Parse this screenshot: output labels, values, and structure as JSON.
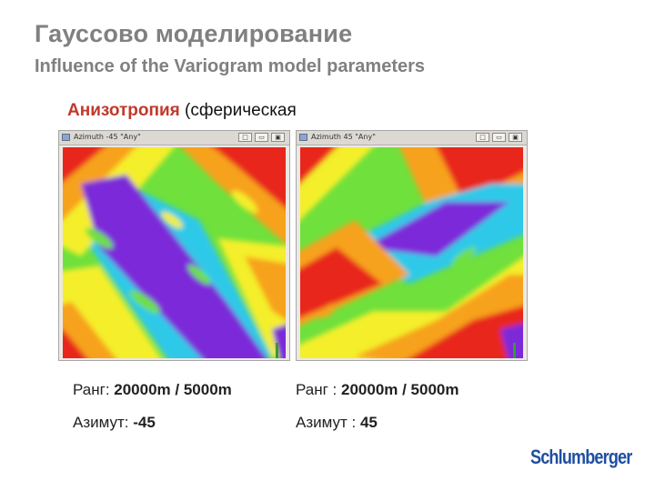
{
  "header": {
    "title": "Гауссово моделирование",
    "subtitle": "Influence of the Variogram model parameters"
  },
  "section": {
    "highlight": "Анизотропия",
    "rest": " (сферическая"
  },
  "windows": [
    {
      "title": "Azimuth -45 \"Any\"",
      "buttons": [
        "□",
        "▭",
        "▣"
      ],
      "range_label": "Ранг: ",
      "range_value": "20000m / 5000m",
      "azimuth_label": "Азимут: ",
      "azimuth_value": "-45"
    },
    {
      "title": "Azimuth 45 \"Any\"",
      "buttons": [
        "□",
        "▭",
        "▣"
      ],
      "range_label": "Ранг : ",
      "range_value": "20000m / 5000m",
      "azimuth_label": "Азимут : ",
      "azimuth_value": "45"
    }
  ],
  "map_colors": {
    "red": "#e8261a",
    "orange": "#f7a21b",
    "yellow": "#f4ef2a",
    "green": "#6fe03c",
    "cyan": "#2fc9e8",
    "purple": "#7b2cd9"
  },
  "logo": "Schlumberger"
}
